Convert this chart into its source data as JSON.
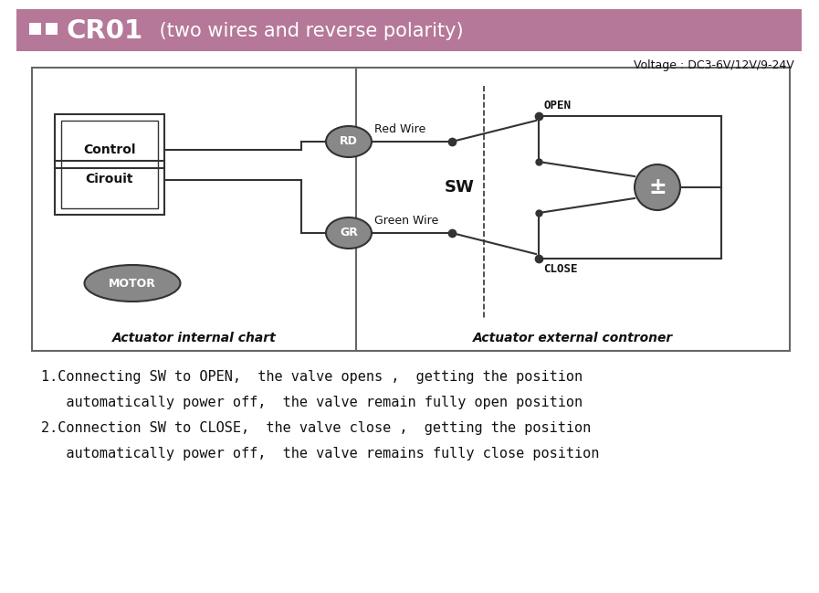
{
  "title_bar_color": "#b57898",
  "title_text_bold": "CR01",
  "title_text_normal": " (two wires and reverse polarity)",
  "voltage_text": "Voltage : DC3-6V/12V/9-24V",
  "bg_color": "#ffffff",
  "border_color": "#666666",
  "label_internal": "Actuator internal chart",
  "label_external": "Actuator external controner",
  "rd_label": "RD",
  "gr_label": "GR",
  "red_wire_label": "Red Wire",
  "green_wire_label": "Green Wire",
  "sw_label": "SW",
  "open_label": "OPEN",
  "close_label": "CLOSE",
  "control_line1": "Control",
  "control_line2": "Cirouit",
  "motor_label": "MOTOR",
  "ellipse_fill": "#888888",
  "ellipse_text_color": "#ffffff",
  "line_color": "#333333",
  "text_color": "#111111",
  "inst1": "1.Connecting SW to OPEN,  the valve opens ,  getting the position",
  "inst2": "   automatically power off,  the valve remain fully open position",
  "inst3": "2.Connection SW to CLOSE,  the valve close ,  getting the position",
  "inst4": "   automatically power off,  the valve remains fully close position"
}
